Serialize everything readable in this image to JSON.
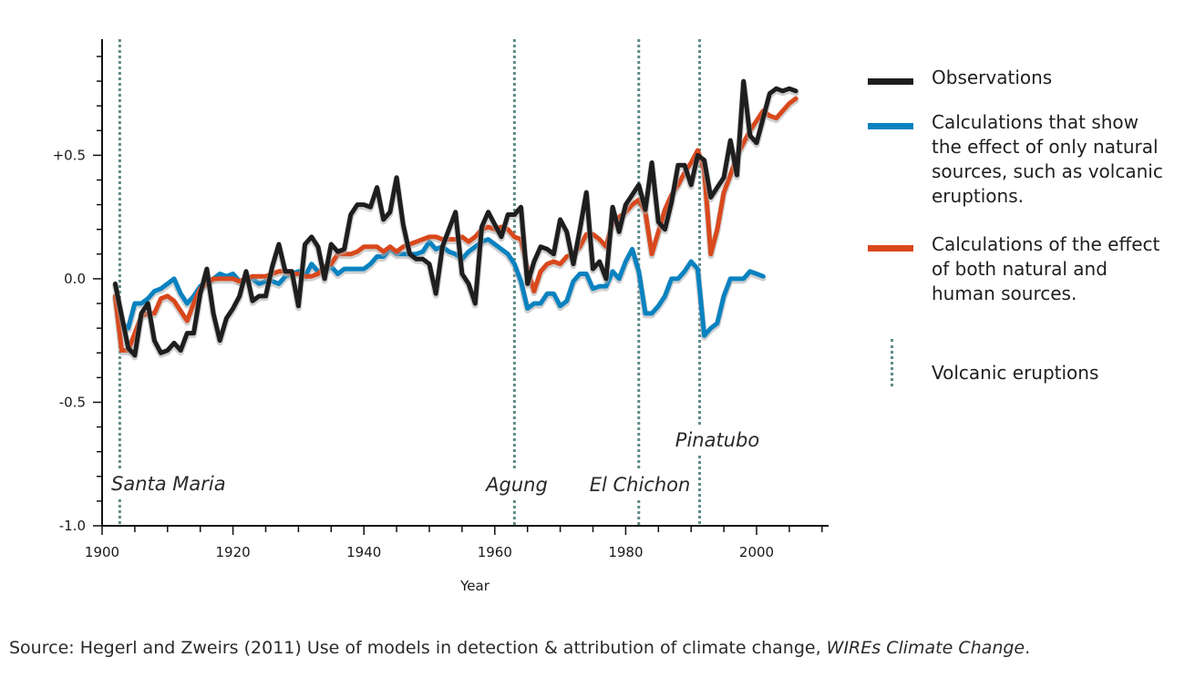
{
  "chart_data": {
    "type": "line",
    "title": "",
    "xlabel": "Year",
    "ylabel": "",
    "xlim": [
      1900,
      2011
    ],
    "ylim": [
      -1.0,
      0.97
    ],
    "grid": false,
    "x_ticks": [
      {
        "value": 1900,
        "label": "1900"
      },
      {
        "value": 1920,
        "label": "1920"
      },
      {
        "value": 1940,
        "label": "1940"
      },
      {
        "value": 1960,
        "label": "1960"
      },
      {
        "value": 1980,
        "label": "1980"
      },
      {
        "value": 2000,
        "label": "2000"
      }
    ],
    "y_ticks": [
      {
        "value": 0.5,
        "label": "+0.5"
      },
      {
        "value": 0.0,
        "label": "0.0"
      },
      {
        "value": -0.5,
        "label": "-0.5"
      },
      {
        "value": -1.0,
        "label": "-1.0"
      }
    ],
    "series": [
      {
        "name": "Observations",
        "color": "#1e1e1e",
        "x": [
          1902,
          1903,
          1904,
          1905,
          1906,
          1907,
          1908,
          1909,
          1910,
          1911,
          1912,
          1913,
          1914,
          1915,
          1916,
          1917,
          1918,
          1919,
          1920,
          1921,
          1922,
          1923,
          1924,
          1925,
          1926,
          1927,
          1928,
          1929,
          1930,
          1931,
          1932,
          1933,
          1934,
          1935,
          1936,
          1937,
          1938,
          1939,
          1940,
          1941,
          1942,
          1943,
          1944,
          1945,
          1946,
          1947,
          1948,
          1949,
          1950,
          1951,
          1952,
          1953,
          1954,
          1955,
          1956,
          1957,
          1958,
          1959,
          1960,
          1961,
          1962,
          1963,
          1964,
          1965,
          1966,
          1967,
          1968,
          1969,
          1970,
          1971,
          1972,
          1973,
          1974,
          1975,
          1976,
          1977,
          1978,
          1979,
          1980,
          1981,
          1982,
          1983,
          1984,
          1985,
          1986,
          1987,
          1988,
          1989,
          1990,
          1991,
          1992,
          1993,
          1994,
          1995,
          1996,
          1997,
          1998,
          1999,
          2000,
          2001,
          2002,
          2003,
          2004,
          2005,
          2006
        ],
        "values": [
          -0.02,
          -0.15,
          -0.28,
          -0.31,
          -0.14,
          -0.1,
          -0.25,
          -0.3,
          -0.29,
          -0.26,
          -0.29,
          -0.22,
          -0.22,
          -0.06,
          0.04,
          -0.14,
          -0.25,
          -0.16,
          -0.12,
          -0.07,
          0.03,
          -0.09,
          -0.07,
          -0.07,
          0.05,
          0.14,
          0.03,
          0.03,
          -0.11,
          0.14,
          0.17,
          0.13,
          0.0,
          0.14,
          0.11,
          0.12,
          0.26,
          0.3,
          0.3,
          0.29,
          0.37,
          0.24,
          0.27,
          0.41,
          0.22,
          0.1,
          0.08,
          0.08,
          0.06,
          -0.06,
          0.13,
          0.2,
          0.27,
          0.02,
          -0.02,
          -0.1,
          0.21,
          0.27,
          0.22,
          0.17,
          0.26,
          0.26,
          0.29,
          -0.02,
          0.07,
          0.13,
          0.12,
          0.1,
          0.24,
          0.19,
          0.06,
          0.2,
          0.35,
          0.04,
          0.07,
          0.0,
          0.29,
          0.19,
          0.3,
          0.34,
          0.38,
          0.28,
          0.47,
          0.23,
          0.2,
          0.31,
          0.46,
          0.46,
          0.38,
          0.5,
          0.48,
          0.33,
          0.37,
          0.41,
          0.56,
          0.42,
          0.8,
          0.58,
          0.55,
          0.65,
          0.75,
          0.77,
          0.76,
          0.77,
          0.76
        ]
      },
      {
        "name": "Calculations that show the effect of only natural sources, such as volcanic eruptions.",
        "color": "#0a82c0",
        "x": [
          1903,
          1904,
          1905,
          1906,
          1907,
          1908,
          1909,
          1910,
          1911,
          1912,
          1913,
          1914,
          1915,
          1916,
          1917,
          1918,
          1919,
          1920,
          1921,
          1922,
          1923,
          1924,
          1925,
          1926,
          1927,
          1928,
          1929,
          1930,
          1931,
          1932,
          1933,
          1934,
          1935,
          1936,
          1937,
          1938,
          1939,
          1940,
          1941,
          1942,
          1943,
          1944,
          1945,
          1946,
          1947,
          1948,
          1949,
          1950,
          1951,
          1952,
          1953,
          1954,
          1955,
          1956,
          1957,
          1958,
          1959,
          1960,
          1961,
          1962,
          1963,
          1964,
          1965,
          1966,
          1967,
          1968,
          1969,
          1970,
          1971,
          1972,
          1973,
          1974,
          1975,
          1976,
          1977,
          1978,
          1979,
          1980,
          1981,
          1982,
          1983,
          1984,
          1985,
          1986,
          1987,
          1988,
          1989,
          1990,
          1991,
          1992,
          1993,
          1994,
          1995,
          1996,
          1997,
          1998,
          1999,
          2000,
          2001
        ],
        "values": [
          -0.18,
          -0.2,
          -0.1,
          -0.1,
          -0.08,
          -0.05,
          -0.04,
          -0.02,
          0.0,
          -0.06,
          -0.1,
          -0.07,
          -0.03,
          -0.01,
          0.0,
          0.02,
          0.01,
          0.02,
          -0.01,
          0.0,
          0.0,
          -0.02,
          -0.01,
          -0.01,
          -0.02,
          0.01,
          0.02,
          0.03,
          0.01,
          0.06,
          0.03,
          0.03,
          0.05,
          0.02,
          0.04,
          0.04,
          0.04,
          0.04,
          0.06,
          0.09,
          0.09,
          0.12,
          0.1,
          0.1,
          0.1,
          0.1,
          0.11,
          0.15,
          0.12,
          0.13,
          0.11,
          0.1,
          0.08,
          0.11,
          0.13,
          0.15,
          0.16,
          0.14,
          0.12,
          0.1,
          0.06,
          -0.01,
          -0.12,
          -0.1,
          -0.1,
          -0.06,
          -0.06,
          -0.11,
          -0.09,
          -0.01,
          0.02,
          0.02,
          -0.04,
          -0.03,
          -0.03,
          0.03,
          0.0,
          0.07,
          0.12,
          0.03,
          -0.14,
          -0.14,
          -0.11,
          -0.07,
          0.0,
          0.0,
          0.03,
          0.07,
          0.04,
          -0.23,
          -0.2,
          -0.18,
          -0.07,
          0.0,
          0.0,
          0.0,
          0.03,
          0.02,
          0.01
        ]
      },
      {
        "name": "Calculations of the effect of both natural and human sources.",
        "color": "#d9481c",
        "x": [
          1902,
          1903,
          1904,
          1905,
          1906,
          1907,
          1908,
          1909,
          1910,
          1911,
          1912,
          1913,
          1914,
          1915,
          1916,
          1917,
          1918,
          1919,
          1920,
          1921,
          1922,
          1923,
          1924,
          1925,
          1926,
          1927,
          1928,
          1929,
          1930,
          1931,
          1932,
          1933,
          1934,
          1935,
          1936,
          1937,
          1938,
          1939,
          1940,
          1941,
          1942,
          1943,
          1944,
          1945,
          1946,
          1947,
          1948,
          1949,
          1950,
          1951,
          1952,
          1953,
          1954,
          1955,
          1956,
          1957,
          1958,
          1959,
          1960,
          1961,
          1962,
          1963,
          1964,
          1965,
          1966,
          1967,
          1968,
          1969,
          1970,
          1971,
          1972,
          1973,
          1974,
          1975,
          1976,
          1977,
          1978,
          1979,
          1980,
          1981,
          1982,
          1983,
          1984,
          1985,
          1986,
          1987,
          1988,
          1989,
          1990,
          1991,
          1992,
          1993,
          1994,
          1995,
          1996,
          1997,
          1998,
          1999,
          2000,
          2001,
          2002,
          2003,
          2004,
          2005,
          2006
        ],
        "values": [
          -0.07,
          -0.29,
          -0.29,
          -0.22,
          -0.15,
          -0.14,
          -0.14,
          -0.08,
          -0.07,
          -0.09,
          -0.13,
          -0.17,
          -0.1,
          -0.04,
          -0.02,
          0.0,
          0.0,
          0.0,
          0.0,
          -0.01,
          0.0,
          0.01,
          0.01,
          0.01,
          0.02,
          0.03,
          0.03,
          0.02,
          0.02,
          0.01,
          0.01,
          0.02,
          0.05,
          0.06,
          0.1,
          0.1,
          0.1,
          0.11,
          0.13,
          0.13,
          0.13,
          0.11,
          0.13,
          0.11,
          0.13,
          0.14,
          0.15,
          0.16,
          0.17,
          0.17,
          0.16,
          0.16,
          0.16,
          0.17,
          0.15,
          0.17,
          0.2,
          0.21,
          0.2,
          0.21,
          0.2,
          0.17,
          0.16,
          0.04,
          -0.05,
          0.03,
          0.06,
          0.07,
          0.06,
          0.09,
          0.1,
          0.13,
          0.18,
          0.18,
          0.16,
          0.13,
          0.23,
          0.25,
          0.27,
          0.3,
          0.32,
          0.27,
          0.1,
          0.19,
          0.28,
          0.34,
          0.38,
          0.43,
          0.47,
          0.52,
          0.44,
          0.1,
          0.2,
          0.35,
          0.42,
          0.5,
          0.55,
          0.6,
          0.64,
          0.68,
          0.66,
          0.65,
          0.68,
          0.71,
          0.73
        ]
      }
    ],
    "volcanic_eruptions": [
      {
        "name": "Santa Maria",
        "year": 1902.7
      },
      {
        "name": "Agung",
        "year": 1963
      },
      {
        "name": "El Chichon",
        "year": 1982
      },
      {
        "name": "Pinatubo",
        "year": 1991.3
      }
    ]
  },
  "legend": {
    "observations": "Observations",
    "natural": "Calculations that show the effect of only natural sources, such as volcanic eruptions.",
    "both": "Calculations of the effect of both natural and human sources.",
    "volcanic": "Volcanic eruptions"
  },
  "source": {
    "prefix": "Source: Hegerl and Zweirs (2011) Use of models in detection & attribution of climate change, ",
    "journal": "WIREs Climate Change",
    "suffix": "."
  }
}
